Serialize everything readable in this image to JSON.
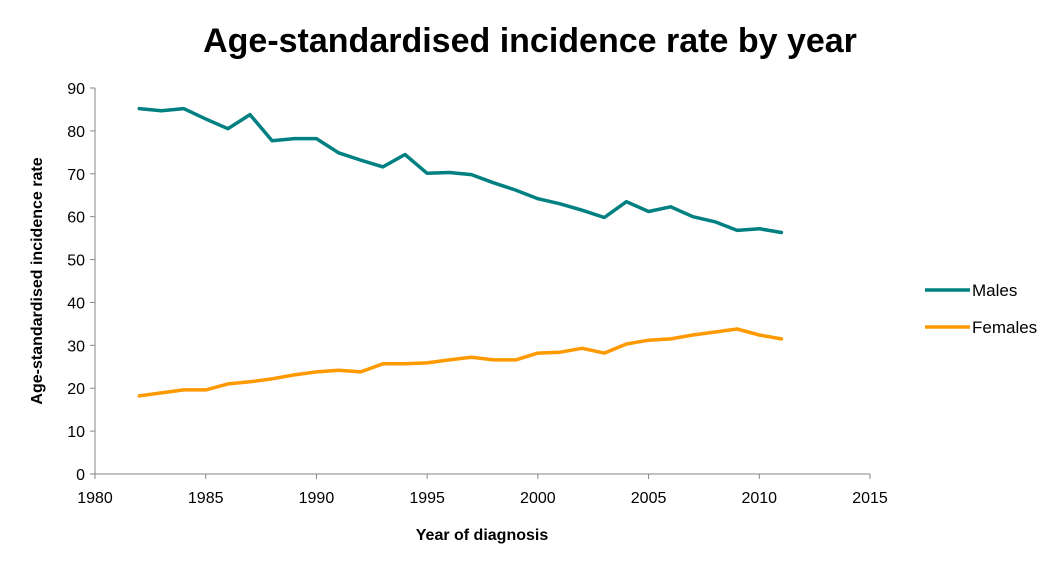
{
  "chart_data": {
    "type": "line",
    "title": "Age-standardised incidence rate by year",
    "xlabel": "Year of diagnosis",
    "ylabel": "Age-standardised incidence rate",
    "xlim": [
      1980,
      2015
    ],
    "ylim": [
      0,
      90
    ],
    "x_ticks": [
      1980,
      1985,
      1990,
      1995,
      2000,
      2005,
      2010,
      2015
    ],
    "y_ticks": [
      0,
      10,
      20,
      30,
      40,
      50,
      60,
      70,
      80,
      90
    ],
    "grid": false,
    "legend_position": "right",
    "x": [
      1982,
      1983,
      1984,
      1985,
      1986,
      1987,
      1988,
      1989,
      1990,
      1991,
      1992,
      1993,
      1994,
      1995,
      1996,
      1997,
      1998,
      1999,
      2000,
      2001,
      2002,
      2003,
      2004,
      2005,
      2006,
      2007,
      2008,
      2009,
      2010,
      2011
    ],
    "series": [
      {
        "name": "Males",
        "color": "#008080",
        "values": [
          85.2,
          84.7,
          85.2,
          82.8,
          80.5,
          83.8,
          77.7,
          78.2,
          78.2,
          74.9,
          73.2,
          71.6,
          74.5,
          70.1,
          70.3,
          69.8,
          67.9,
          66.2,
          64.2,
          63.0,
          61.5,
          59.8,
          63.5,
          61.2,
          62.3,
          60.0,
          58.8,
          56.8,
          57.2,
          56.3
        ]
      },
      {
        "name": "Females",
        "color": "#FF9900",
        "values": [
          18.2,
          18.9,
          19.6,
          19.6,
          21.0,
          21.5,
          22.2,
          23.1,
          23.8,
          24.2,
          23.8,
          25.7,
          25.7,
          25.9,
          26.6,
          27.2,
          26.6,
          26.6,
          28.2,
          28.4,
          29.3,
          28.2,
          30.3,
          31.2,
          31.5,
          32.4,
          33.1,
          33.8,
          32.4,
          31.5
        ]
      }
    ]
  }
}
